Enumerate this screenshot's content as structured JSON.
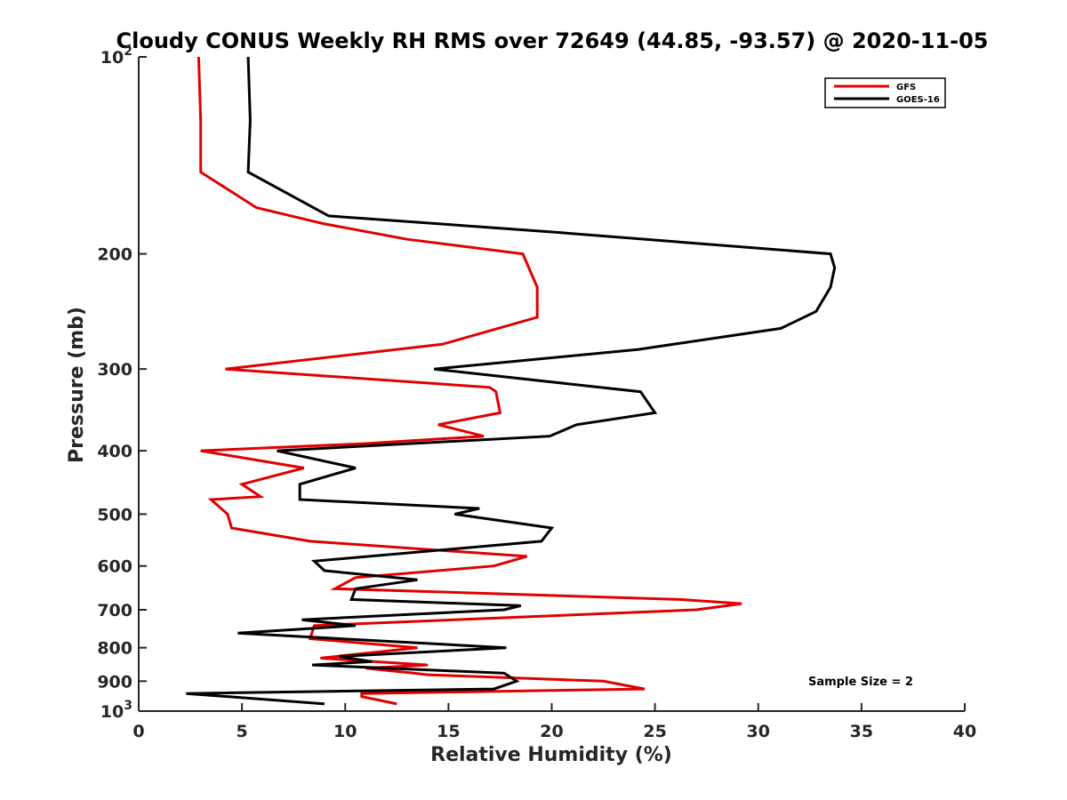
{
  "chart_data": {
    "type": "line",
    "title": "Cloudy CONUS Weekly RH RMS over 72649 (44.85, -93.57) @ 2020-11-05",
    "xlabel": "Relative Humidity (%)",
    "ylabel": "Pressure (mb)",
    "xlim": [
      0,
      40
    ],
    "ylim": [
      100,
      1000
    ],
    "y_scale": "log",
    "y_reversed": true,
    "grid": false,
    "legend_position": "top-right",
    "x_ticks": [
      0,
      5,
      10,
      15,
      20,
      25,
      30,
      35,
      40
    ],
    "x_tick_labels": [
      "0",
      "5",
      "10",
      "15",
      "20",
      "25",
      "30",
      "35",
      "40"
    ],
    "y_ticks": [
      200,
      300,
      400,
      500,
      600,
      700,
      800,
      900
    ],
    "y_tick_labels": [
      "200",
      "300",
      "400",
      "500",
      "600",
      "700",
      "800",
      "900"
    ],
    "y_end_labels": [
      {
        "value": 100,
        "base": "10",
        "exp": "2"
      },
      {
        "value": 1000,
        "base": "10",
        "exp": "3"
      }
    ],
    "annotation": "Sample Size = 2",
    "series": [
      {
        "name": "GFS",
        "color": "#e00000",
        "points": [
          [
            2.9,
            100
          ],
          [
            3.0,
            125
          ],
          [
            3.0,
            150
          ],
          [
            5.7,
            170
          ],
          [
            9.0,
            180
          ],
          [
            13.0,
            190
          ],
          [
            18.6,
            200
          ],
          [
            19.3,
            225
          ],
          [
            19.3,
            250
          ],
          [
            14.7,
            275
          ],
          [
            4.2,
            300
          ],
          [
            17.0,
            320
          ],
          [
            17.3,
            325
          ],
          [
            17.5,
            350
          ],
          [
            14.5,
            365
          ],
          [
            16.7,
            380
          ],
          [
            11.0,
            390
          ],
          [
            3.0,
            400
          ],
          [
            8.0,
            425
          ],
          [
            5.0,
            450
          ],
          [
            5.9,
            470
          ],
          [
            3.5,
            475
          ],
          [
            4.3,
            500
          ],
          [
            4.5,
            525
          ],
          [
            8.3,
            550
          ],
          [
            18.8,
            580
          ],
          [
            17.2,
            600
          ],
          [
            10.5,
            625
          ],
          [
            9.5,
            650
          ],
          [
            26.2,
            675
          ],
          [
            29.2,
            685
          ],
          [
            27.0,
            700
          ],
          [
            8.5,
            740
          ],
          [
            8.3,
            775
          ],
          [
            13.5,
            800
          ],
          [
            8.8,
            830
          ],
          [
            14.0,
            850
          ],
          [
            11.0,
            860
          ],
          [
            13.3,
            875
          ],
          [
            14.0,
            880
          ],
          [
            22.5,
            900
          ],
          [
            24.5,
            925
          ],
          [
            10.8,
            940
          ],
          [
            10.8,
            950
          ],
          [
            12.5,
            975
          ]
        ]
      },
      {
        "name": "GOES-16",
        "color": "#000000",
        "points": [
          [
            5.3,
            100
          ],
          [
            5.4,
            125
          ],
          [
            5.3,
            150
          ],
          [
            9.2,
            175
          ],
          [
            19.8,
            185
          ],
          [
            33.5,
            200
          ],
          [
            33.7,
            210
          ],
          [
            33.5,
            225
          ],
          [
            32.8,
            245
          ],
          [
            31.1,
            260
          ],
          [
            24.2,
            280
          ],
          [
            14.3,
            300
          ],
          [
            24.3,
            325
          ],
          [
            25.0,
            350
          ],
          [
            21.2,
            365
          ],
          [
            19.9,
            380
          ],
          [
            6.7,
            400
          ],
          [
            10.5,
            425
          ],
          [
            7.8,
            450
          ],
          [
            7.8,
            475
          ],
          [
            16.5,
            490
          ],
          [
            15.3,
            500
          ],
          [
            20.0,
            525
          ],
          [
            19.5,
            550
          ],
          [
            8.5,
            590
          ],
          [
            9.0,
            610
          ],
          [
            13.5,
            630
          ],
          [
            10.5,
            650
          ],
          [
            10.3,
            675
          ],
          [
            18.5,
            690
          ],
          [
            17.7,
            700
          ],
          [
            7.9,
            725
          ],
          [
            10.5,
            740
          ],
          [
            4.8,
            760
          ],
          [
            17.8,
            800
          ],
          [
            9.7,
            825
          ],
          [
            11.3,
            840
          ],
          [
            8.4,
            850
          ],
          [
            17.7,
            875
          ],
          [
            18.3,
            900
          ],
          [
            17.2,
            925
          ],
          [
            2.3,
            940
          ],
          [
            9.0,
            975
          ]
        ]
      }
    ]
  }
}
